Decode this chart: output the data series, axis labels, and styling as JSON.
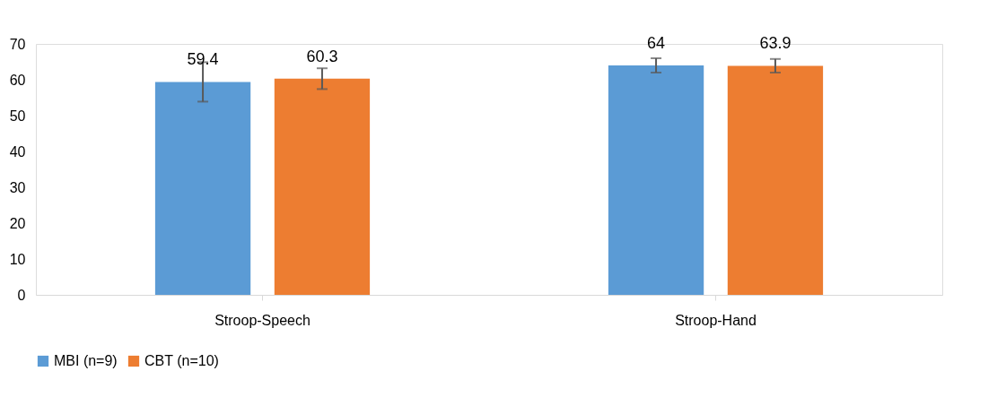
{
  "chart_data": {
    "type": "bar",
    "categories": [
      "Stroop-Speech",
      "Stroop-Hand"
    ],
    "series": [
      {
        "name": "MBI (n=9)",
        "color": "#5b9bd5",
        "values": [
          59.4,
          64
        ],
        "errors": [
          5.5,
          2
        ]
      },
      {
        "name": "CBT (n=10)",
        "color": "#ed7d31",
        "values": [
          60.3,
          63.9
        ],
        "errors": [
          2.9,
          1.9
        ]
      }
    ],
    "ylim": [
      0,
      70
    ],
    "yticks": [
      0,
      10,
      20,
      30,
      40,
      50,
      60,
      70
    ],
    "grid": false,
    "legend": "bottom",
    "data_labels": true
  }
}
